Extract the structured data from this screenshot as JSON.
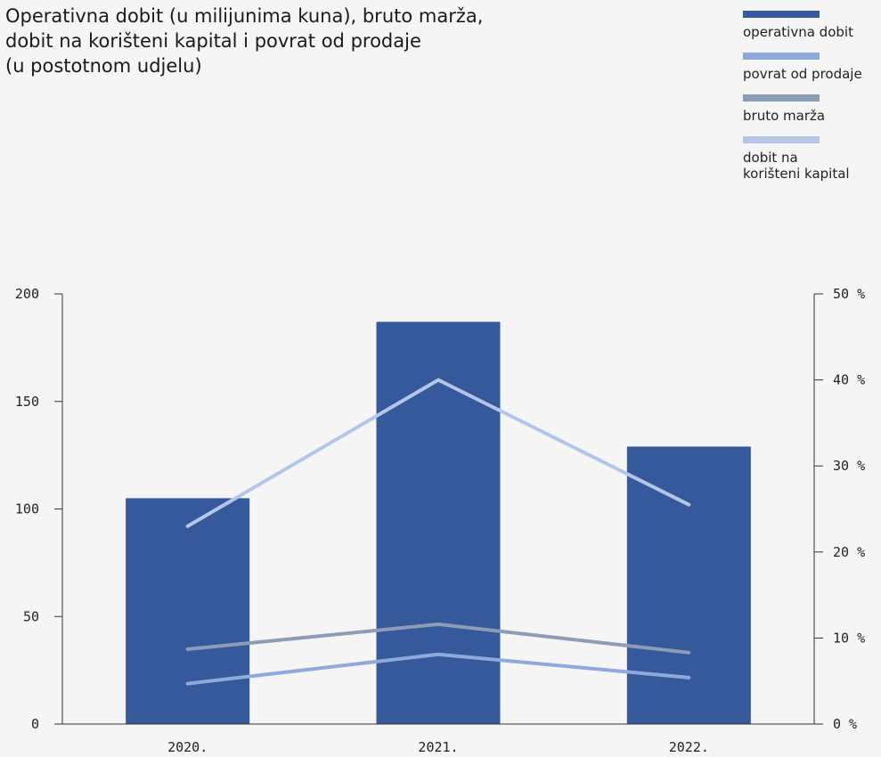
{
  "title_lines": [
    "Operativna dobit (u milijunima kuna), bruto marža,",
    "dobit na korišteni kapital i povrat od prodaje",
    "(u postotnom udjelu)"
  ],
  "legend": [
    {
      "label": "operativna dobit",
      "color": "#36599c"
    },
    {
      "label": "povrat od prodaje",
      "color": "#8ea9dc"
    },
    {
      "label": "bruto marža",
      "color": "#8c9db5"
    },
    {
      "label_lines": [
        "dobit na",
        "korišteni kapital"
      ],
      "color": "#b3c6e7"
    }
  ],
  "chart_data": {
    "type": "bar",
    "categories": [
      "2020.",
      "2021.",
      "2022."
    ],
    "left_axis": {
      "ylim": [
        0,
        200
      ],
      "ticks": [
        "0",
        "50",
        "100",
        "150",
        "200"
      ]
    },
    "right_axis": {
      "ylim": [
        0,
        50
      ],
      "ticks": [
        "0 %",
        "10 %",
        "20 %",
        "30 %",
        "40 %",
        "50 %"
      ]
    },
    "bar_series": {
      "name": "operativna dobit",
      "values": [
        105,
        187,
        129
      ],
      "color": "#36599c",
      "axis": "left"
    },
    "line_series": [
      {
        "name": "dobit na korišteni kapital",
        "values": [
          23,
          40,
          25.5
        ],
        "color": "#b3c6e7",
        "axis": "right"
      },
      {
        "name": "bruto marža",
        "values": [
          8.7,
          11.6,
          8.3
        ],
        "color": "#8c9db5",
        "axis": "right"
      },
      {
        "name": "povrat od prodaje",
        "values": [
          4.7,
          8.1,
          5.4
        ],
        "color": "#8ea9dc",
        "axis": "right"
      }
    ],
    "grid": false
  }
}
